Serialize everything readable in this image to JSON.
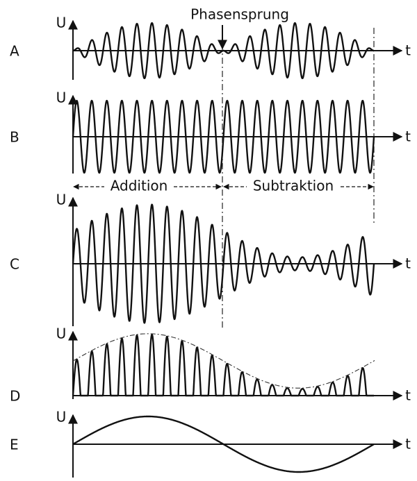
{
  "rows": [
    {
      "label": "A",
      "y_axis": "U",
      "x_axis": "t"
    },
    {
      "label": "B",
      "y_axis": "U",
      "x_axis": "t"
    },
    {
      "label": "C",
      "y_axis": "U",
      "x_axis": "t"
    },
    {
      "label": "D",
      "y_axis": "U",
      "x_axis": "t"
    },
    {
      "label": "E",
      "y_axis": "U",
      "x_axis": "t"
    }
  ],
  "annotations": {
    "phase_jump": "Phasensprung",
    "addition": "Addition",
    "subtraction": "Subtraktion"
  }
}
